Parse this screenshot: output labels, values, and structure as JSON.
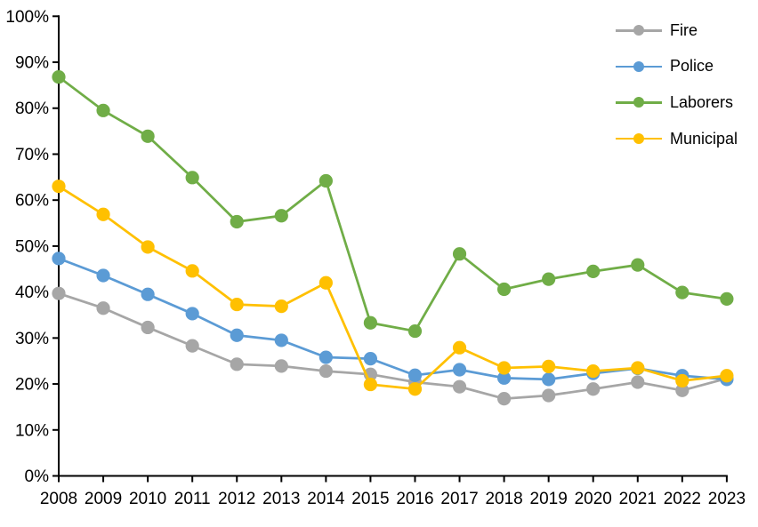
{
  "chart_data": {
    "type": "line",
    "title": "",
    "xlabel": "",
    "ylabel": "",
    "x": [
      "2008",
      "2009",
      "2010",
      "2011",
      "2012",
      "2013",
      "2014",
      "2015",
      "2016",
      "2017",
      "2018",
      "2019",
      "2020",
      "2021",
      "2022",
      "2023"
    ],
    "series": [
      {
        "name": "Fire",
        "color": "#A6A6A6",
        "values": [
          39.7,
          36.5,
          32.3,
          28.3,
          24.3,
          23.9,
          22.8,
          22.1,
          20.4,
          19.4,
          16.8,
          17.5,
          18.9,
          20.4,
          18.6,
          21.2
        ]
      },
      {
        "name": "Police",
        "color": "#5B9BD5",
        "values": [
          47.3,
          43.6,
          39.5,
          35.3,
          30.6,
          29.5,
          25.8,
          25.5,
          21.9,
          23.1,
          21.3,
          21.0,
          22.3,
          23.4,
          21.8,
          21.0
        ]
      },
      {
        "name": "Laborers",
        "color": "#70AD47",
        "values": [
          86.8,
          79.5,
          73.9,
          64.9,
          55.3,
          56.6,
          64.2,
          33.3,
          31.5,
          48.3,
          40.6,
          42.8,
          44.5,
          45.9,
          39.9,
          38.5
        ]
      },
      {
        "name": "Municipal",
        "color": "#FFC000",
        "values": [
          63.0,
          56.9,
          49.8,
          44.6,
          37.3,
          36.9,
          42.0,
          19.9,
          18.9,
          27.9,
          23.5,
          23.8,
          22.8,
          23.5,
          20.7,
          21.8
        ]
      }
    ],
    "ylim": [
      0,
      100
    ],
    "ytick_step": 10,
    "ytick_labels": [
      "0%",
      "10%",
      "20%",
      "30%",
      "40%",
      "50%",
      "60%",
      "70%",
      "80%",
      "90%",
      "100%"
    ],
    "legend_position": "top-right",
    "legend_labels": [
      "Fire",
      "Police",
      "Laborers",
      "Municipal"
    ],
    "grid": false,
    "axis_color": "#000000",
    "background": "#FFFFFF"
  }
}
